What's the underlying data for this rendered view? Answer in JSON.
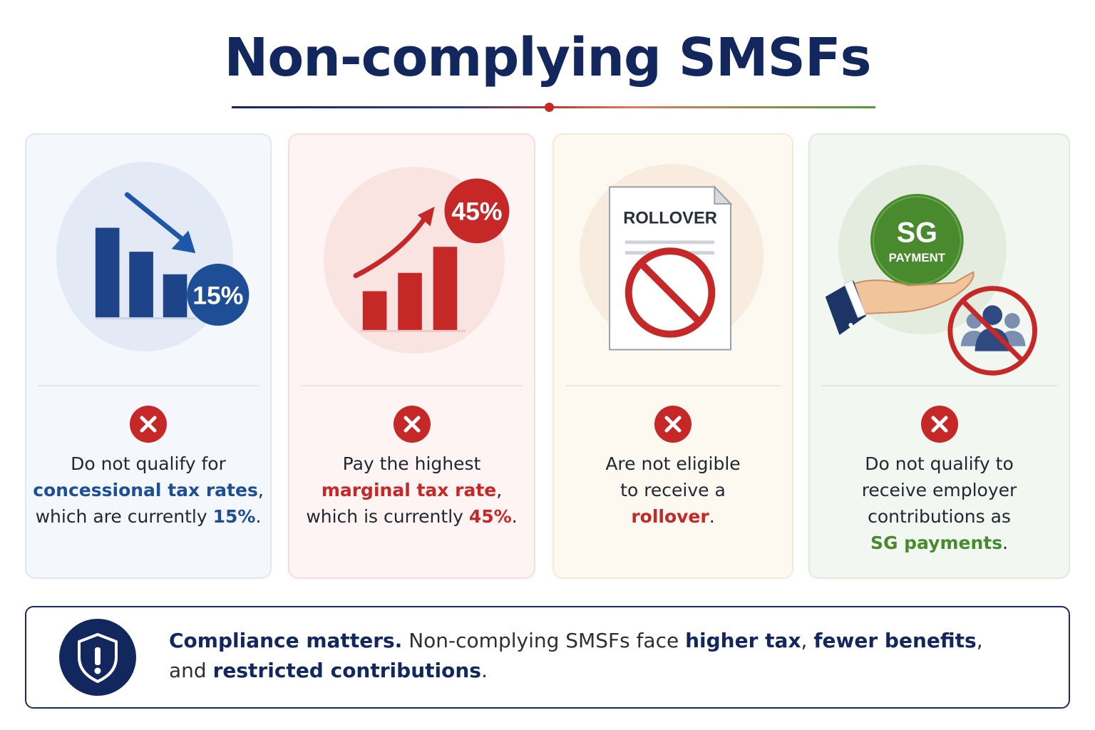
{
  "title": "Non-complying SMSFs",
  "colors": {
    "navy": "#13275f",
    "blue": "#1e4f96",
    "red": "#c62828",
    "green": "#4a8a2e"
  },
  "cards": [
    {
      "icon": "declining-bar-chart-icon",
      "badge": "15%",
      "status_icon": "x-circle-icon",
      "line1": "Do not qualify for",
      "highlight": "concessional tax rates",
      "after_highlight": ",",
      "line3_prefix": "which are currently ",
      "value": "15%",
      "line3_suffix": "."
    },
    {
      "icon": "rising-bar-chart-icon",
      "badge": "45%",
      "status_icon": "x-circle-icon",
      "line1": "Pay the highest",
      "highlight": "marginal tax rate",
      "after_highlight": ",",
      "line3_prefix": "which is currently ",
      "value": "45%",
      "line3_suffix": "."
    },
    {
      "icon": "rollover-document-prohibited-icon",
      "doc_label": "ROLLOVER",
      "status_icon": "x-circle-icon",
      "line1": "Are not eligible",
      "line2": "to receive a",
      "highlight": "rollover",
      "after_highlight": "."
    },
    {
      "icon": "sg-payment-hand-icon",
      "coin_top": "SG",
      "coin_bottom": "PAYMENT",
      "status_icon": "x-circle-icon",
      "line1": "Do not qualify to",
      "line2": "receive employer",
      "line3": "contributions as",
      "highlight": "SG payments",
      "after_highlight": "."
    }
  ],
  "footer": {
    "icon": "shield-exclamation-icon",
    "lead": "Compliance matters.",
    "text1": " Non-complying SMSFs face ",
    "emph1": "higher tax",
    "sep": ", ",
    "emph2": "fewer benefits",
    "text2": ",",
    "text3": "and ",
    "emph3": "restricted contributions",
    "text4": "."
  }
}
